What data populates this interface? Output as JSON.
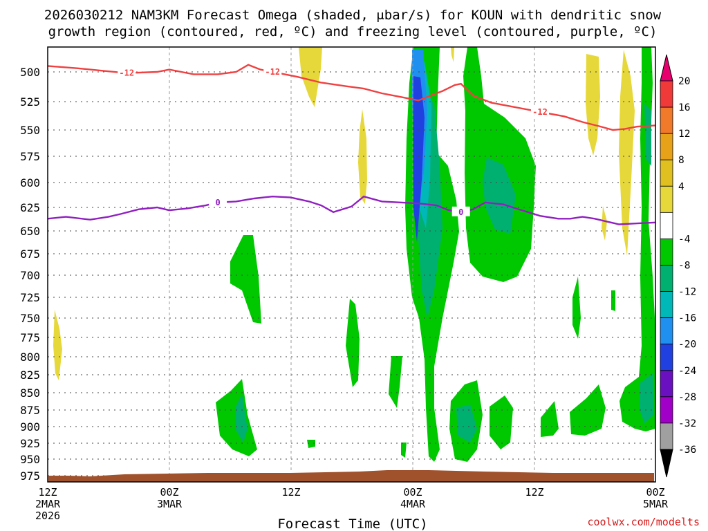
{
  "chart_data": {
    "type": "heatmap",
    "title_lines": [
      "2026030212 NAM3KM Forecast Omega (shaded, μbar/s) for KOUN with dendritic snow",
      "growth region (contoured, red, ºC) and freezing level (contoured, purple, ºC)"
    ],
    "xlabel": "Forecast Time (UTC)",
    "y_ticks": [
      "500",
      "525",
      "550",
      "575",
      "600",
      "625",
      "650",
      "675",
      "700",
      "725",
      "750",
      "775",
      "800",
      "825",
      "850",
      "875",
      "900",
      "925",
      "950",
      "975"
    ],
    "x_ticks": [
      {
        "lines": [
          "12Z",
          "2MAR",
          "2026"
        ]
      },
      {
        "lines": [
          "00Z",
          "3MAR"
        ]
      },
      {
        "lines": [
          "12Z"
        ]
      },
      {
        "lines": [
          "00Z",
          "4MAR"
        ]
      },
      {
        "lines": [
          "12Z"
        ]
      },
      {
        "lines": [
          "00Z",
          "5MAR"
        ]
      }
    ],
    "colorbar": {
      "labels": [
        "20",
        "16",
        "12",
        "8",
        "4",
        "-4",
        "-8",
        "-12",
        "-16",
        "-20",
        "-24",
        "-28",
        "-32",
        "-36"
      ],
      "colors": [
        "#e8006e",
        "#f03a3a",
        "#f07a2a",
        "#e8a21a",
        "#e0c020",
        "#e6d83a",
        "#ffffff",
        "#00c800",
        "#00b070",
        "#00b8b8",
        "#2090f0",
        "#2040e0",
        "#6a10c0",
        "#a000c8",
        "#a0a0a0",
        "#000000"
      ]
    },
    "series": [
      {
        "name": "dendritic snow growth region",
        "contour_label": "-12",
        "color": "#f04040",
        "points": [
          [
            0,
            495
          ],
          [
            0.05,
            497
          ],
          [
            0.09,
            499
          ],
          [
            0.13,
            501
          ],
          [
            0.18,
            500
          ],
          [
            0.2,
            498
          ],
          [
            0.22,
            500
          ],
          [
            0.24,
            502
          ],
          [
            0.28,
            502
          ],
          [
            0.31,
            500
          ],
          [
            0.33,
            494
          ],
          [
            0.35,
            498
          ],
          [
            0.37,
            500
          ],
          [
            0.39,
            502
          ],
          [
            0.41,
            504
          ],
          [
            0.45,
            509
          ],
          [
            0.49,
            512
          ],
          [
            0.52,
            514
          ],
          [
            0.55,
            518
          ],
          [
            0.58,
            521
          ],
          [
            0.61,
            524
          ],
          [
            0.63,
            520
          ],
          [
            0.65,
            516
          ],
          [
            0.67,
            511
          ],
          [
            0.68,
            510
          ],
          [
            0.7,
            520
          ],
          [
            0.73,
            526
          ],
          [
            0.77,
            530
          ],
          [
            0.81,
            534
          ],
          [
            0.85,
            538
          ],
          [
            0.88,
            543
          ],
          [
            0.91,
            547
          ],
          [
            0.93,
            550
          ],
          [
            0.95,
            549
          ],
          [
            0.97,
            547
          ],
          [
            1.0,
            546
          ]
        ]
      },
      {
        "name": "freezing level",
        "contour_label": "0",
        "color": "#9020c0",
        "points": [
          [
            0,
            637
          ],
          [
            0.03,
            635
          ],
          [
            0.07,
            638
          ],
          [
            0.1,
            635
          ],
          [
            0.12,
            632
          ],
          [
            0.15,
            627
          ],
          [
            0.18,
            625
          ],
          [
            0.2,
            628
          ],
          [
            0.23,
            626
          ],
          [
            0.26,
            623
          ],
          [
            0.28,
            620
          ],
          [
            0.31,
            619
          ],
          [
            0.34,
            616
          ],
          [
            0.37,
            614
          ],
          [
            0.4,
            615
          ],
          [
            0.43,
            619
          ],
          [
            0.45,
            623
          ],
          [
            0.47,
            630
          ],
          [
            0.5,
            624
          ],
          [
            0.52,
            614
          ],
          [
            0.55,
            619
          ],
          [
            0.58,
            620
          ],
          [
            0.61,
            621
          ],
          [
            0.64,
            623
          ],
          [
            0.66,
            628
          ],
          [
            0.68,
            630
          ],
          [
            0.7,
            627
          ],
          [
            0.72,
            620
          ],
          [
            0.75,
            622
          ],
          [
            0.78,
            628
          ],
          [
            0.81,
            634
          ],
          [
            0.84,
            637
          ],
          [
            0.86,
            637
          ],
          [
            0.88,
            635
          ],
          [
            0.9,
            637
          ],
          [
            0.92,
            640
          ],
          [
            0.94,
            643
          ],
          [
            0.97,
            642
          ],
          [
            1.0,
            641
          ]
        ]
      }
    ]
  },
  "credit": "coolwx.com/modelts"
}
